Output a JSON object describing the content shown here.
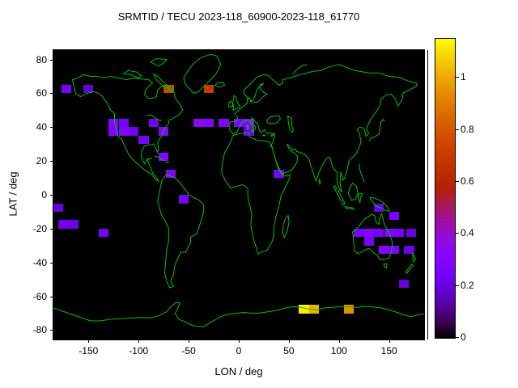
{
  "title": "SRMTID / TECU 2023-118_60900-2023-118_61770",
  "chart_data": {
    "type": "heatmap",
    "title": "SRMTID / TECU 2023-118_60900-2023-118_61770",
    "xlabel": "LON / deg",
    "ylabel": "LAT / deg",
    "x_ticks": [
      -150,
      -100,
      -50,
      0,
      50,
      100,
      150
    ],
    "y_ticks": [
      80,
      60,
      40,
      20,
      0,
      -20,
      -40,
      -60,
      -80
    ],
    "xlim": [
      -185,
      185
    ],
    "ylim": [
      -85.5,
      85.5
    ],
    "grid": false,
    "colorbar": {
      "ticks": [
        0,
        0.2,
        0.4,
        0.6,
        0.8,
        1
      ],
      "range": [
        0,
        1.15
      ],
      "palette": "gnuplot-default black-purple-orange-yellow",
      "position": "right"
    },
    "basemap": {
      "coastline_color": "#00c000",
      "ocean_color": "#000000"
    },
    "cell_size_deg": {
      "lon": 10,
      "lat": 5
    },
    "cells": [
      {
        "lon": -172,
        "lat": 62.5,
        "v": 0.25
      },
      {
        "lon": -150,
        "lat": 62.5,
        "v": 0.18
      },
      {
        "lon": -70,
        "lat": 62.5,
        "v": 0.75
      },
      {
        "lon": -30,
        "lat": 62.5,
        "v": 0.7
      },
      {
        "lon": -125,
        "lat": 42.5,
        "v": 0.3
      },
      {
        "lon": -115,
        "lat": 42.5,
        "v": 0.25
      },
      {
        "lon": -85,
        "lat": 42.5,
        "v": 0.22
      },
      {
        "lon": -125,
        "lat": 37.5,
        "v": 0.28
      },
      {
        "lon": -115,
        "lat": 37.5,
        "v": 0.3
      },
      {
        "lon": -105,
        "lat": 37.5,
        "v": 0.22
      },
      {
        "lon": -75,
        "lat": 37.5,
        "v": 0.3
      },
      {
        "lon": -95,
        "lat": 32.5,
        "v": 0.25
      },
      {
        "lon": -40,
        "lat": 42.5,
        "v": 0.35
      },
      {
        "lon": -30,
        "lat": 42.5,
        "v": 0.3
      },
      {
        "lon": -15,
        "lat": 42.5,
        "v": 0.28
      },
      {
        "lon": 0,
        "lat": 42.5,
        "v": 0.28
      },
      {
        "lon": 10,
        "lat": 42.5,
        "v": 0.3
      },
      {
        "lon": 10,
        "lat": 37.5,
        "v": 0.22
      },
      {
        "lon": -75,
        "lat": 22.5,
        "v": 0.3
      },
      {
        "lon": -68,
        "lat": 12.5,
        "v": 0.28
      },
      {
        "lon": -55,
        "lat": -2.5,
        "v": 0.25
      },
      {
        "lon": 40,
        "lat": 12.5,
        "v": 0.25
      },
      {
        "lon": -180,
        "lat": -7.5,
        "v": 0.2
      },
      {
        "lon": -175,
        "lat": -17.5,
        "v": 0.22
      },
      {
        "lon": -165,
        "lat": -17.5,
        "v": 0.2
      },
      {
        "lon": -135,
        "lat": -22.5,
        "v": 0.25
      },
      {
        "lon": 140,
        "lat": -7.5,
        "v": 0.2
      },
      {
        "lon": 155,
        "lat": -12.5,
        "v": 0.25
      },
      {
        "lon": 120,
        "lat": -22.5,
        "v": 0.25
      },
      {
        "lon": 130,
        "lat": -22.5,
        "v": 0.3
      },
      {
        "lon": 140,
        "lat": -22.5,
        "v": 0.25
      },
      {
        "lon": 150,
        "lat": -22.5,
        "v": 0.3
      },
      {
        "lon": 160,
        "lat": -22.5,
        "v": 0.25
      },
      {
        "lon": 172,
        "lat": -22.5,
        "v": 0.2
      },
      {
        "lon": 130,
        "lat": -27.5,
        "v": 0.25
      },
      {
        "lon": 145,
        "lat": -32.5,
        "v": 0.3
      },
      {
        "lon": 155,
        "lat": -32.5,
        "v": 0.25
      },
      {
        "lon": 170,
        "lat": -32.5,
        "v": 0.2
      },
      {
        "lon": 165,
        "lat": -52.5,
        "v": 0.2
      },
      {
        "lon": 65,
        "lat": -67.5,
        "v": 1.12
      },
      {
        "lon": 75,
        "lat": -67.5,
        "v": 1.02
      },
      {
        "lon": 110,
        "lat": -67.5,
        "v": 0.95
      }
    ]
  }
}
